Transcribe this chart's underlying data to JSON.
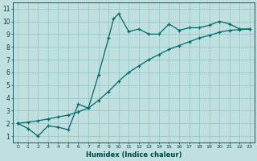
{
  "xlabel": "Humidex (Indice chaleur)",
  "bg_color": "#c0e0e0",
  "grid_color": "#98c8c8",
  "line_color": "#006868",
  "xlim": [
    -0.5,
    23.5
  ],
  "ylim": [
    0.5,
    11.5
  ],
  "xticks": [
    0,
    1,
    2,
    3,
    4,
    5,
    6,
    7,
    8,
    9,
    10,
    11,
    12,
    13,
    14,
    15,
    16,
    17,
    18,
    19,
    20,
    21,
    22,
    23
  ],
  "yticks": [
    1,
    2,
    3,
    4,
    5,
    6,
    7,
    8,
    9,
    10,
    11
  ],
  "line1_x": [
    0,
    1,
    2,
    3,
    4,
    5,
    6,
    7,
    8,
    9,
    9.5,
    10,
    11,
    12,
    13,
    14,
    15,
    16,
    17,
    18,
    19,
    20,
    21,
    22,
    23
  ],
  "line1_y": [
    2.0,
    1.6,
    1.0,
    1.8,
    1.7,
    1.5,
    3.5,
    3.2,
    5.8,
    8.7,
    10.2,
    10.6,
    9.2,
    9.4,
    9.0,
    9.0,
    9.8,
    9.3,
    9.5,
    9.5,
    9.7,
    10.0,
    9.8,
    9.4,
    9.4
  ],
  "line2_x": [
    0,
    1,
    2,
    3,
    4,
    5,
    6,
    7,
    8,
    9,
    10,
    11,
    12,
    13,
    14,
    15,
    16,
    17,
    18,
    19,
    20,
    21,
    22,
    23
  ],
  "line2_y": [
    2.0,
    2.1,
    2.2,
    2.35,
    2.5,
    2.65,
    2.9,
    3.2,
    3.8,
    4.5,
    5.3,
    6.0,
    6.5,
    7.0,
    7.4,
    7.8,
    8.1,
    8.4,
    8.7,
    8.9,
    9.15,
    9.3,
    9.35,
    9.4
  ]
}
